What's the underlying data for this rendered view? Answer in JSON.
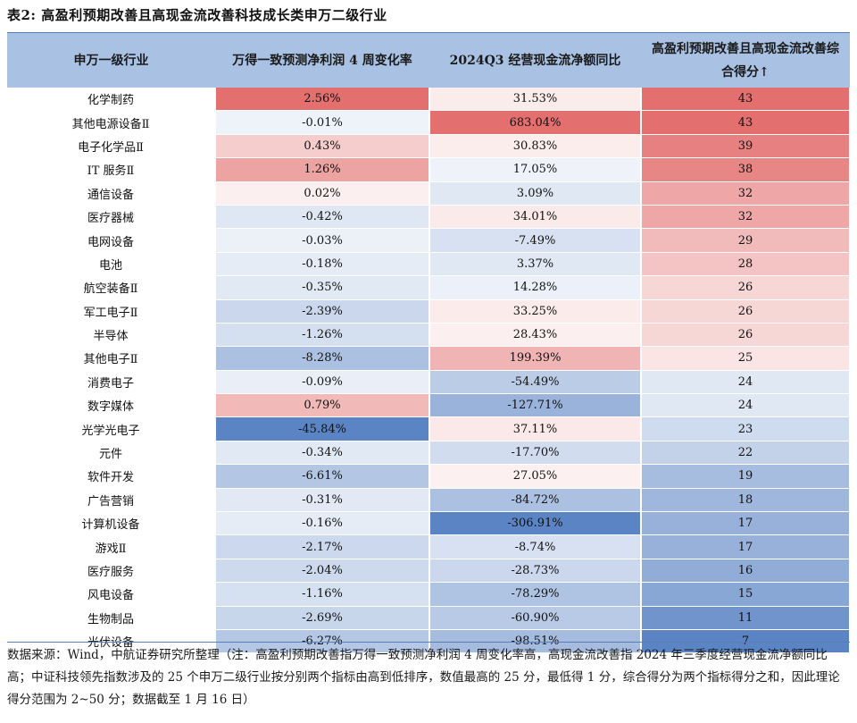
{
  "title": "表2: 高盈利预期改善且高现金流改善科技成长类申万二级行业",
  "headers": {
    "industry": "申万一级行业",
    "col1": "万得一致预测净利润 4 周变化率",
    "col2": "2024Q3 经营现金流净额同比",
    "col3": "高盈利预期改善且高现金流改善综合得分↑"
  },
  "colors": {
    "header_bg": "#a9c2e4",
    "red_strong": "#e46f6f",
    "blue_strong": "#5b84c4",
    "rule": "#5a7fb8"
  },
  "rows": [
    {
      "industry": "化学制药",
      "c1": "2.56%",
      "c2": "31.53%",
      "c3": "43"
    },
    {
      "industry": "其他电源设备Ⅱ",
      "c1": "-0.01%",
      "c2": "683.04%",
      "c3": "43"
    },
    {
      "industry": "电子化学品Ⅱ",
      "c1": "0.43%",
      "c2": "30.83%",
      "c3": "39"
    },
    {
      "industry": "IT 服务Ⅱ",
      "c1": "1.26%",
      "c2": "17.05%",
      "c3": "38"
    },
    {
      "industry": "通信设备",
      "c1": "0.02%",
      "c2": "3.09%",
      "c3": "32"
    },
    {
      "industry": "医疗器械",
      "c1": "-0.42%",
      "c2": "34.01%",
      "c3": "32"
    },
    {
      "industry": "电网设备",
      "c1": "-0.03%",
      "c2": "-7.49%",
      "c3": "29"
    },
    {
      "industry": "电池",
      "c1": "-0.18%",
      "c2": "3.37%",
      "c3": "28"
    },
    {
      "industry": "航空装备Ⅱ",
      "c1": "-0.35%",
      "c2": "14.28%",
      "c3": "26"
    },
    {
      "industry": "军工电子Ⅱ",
      "c1": "-2.39%",
      "c2": "33.25%",
      "c3": "26"
    },
    {
      "industry": "半导体",
      "c1": "-1.26%",
      "c2": "28.43%",
      "c3": "26"
    },
    {
      "industry": "其他电子Ⅱ",
      "c1": "-8.28%",
      "c2": "199.39%",
      "c3": "25"
    },
    {
      "industry": "消费电子",
      "c1": "-0.09%",
      "c2": "-54.49%",
      "c3": "24"
    },
    {
      "industry": "数字媒体",
      "c1": "0.79%",
      "c2": "-127.71%",
      "c3": "24"
    },
    {
      "industry": "光学光电子",
      "c1": "-45.84%",
      "c2": "37.11%",
      "c3": "23"
    },
    {
      "industry": "元件",
      "c1": "-0.34%",
      "c2": "-17.70%",
      "c3": "22"
    },
    {
      "industry": "软件开发",
      "c1": "-6.61%",
      "c2": "27.05%",
      "c3": "19"
    },
    {
      "industry": "广告营销",
      "c1": "-0.31%",
      "c2": "-84.72%",
      "c3": "18"
    },
    {
      "industry": "计算机设备",
      "c1": "-0.16%",
      "c2": "-306.91%",
      "c3": "17"
    },
    {
      "industry": "游戏Ⅱ",
      "c1": "-2.17%",
      "c2": "-8.74%",
      "c3": "17"
    },
    {
      "industry": "医疗服务",
      "c1": "-2.04%",
      "c2": "-28.73%",
      "c3": "16"
    },
    {
      "industry": "风电设备",
      "c1": "-1.16%",
      "c2": "-78.29%",
      "c3": "15"
    },
    {
      "industry": "生物制品",
      "c1": "-2.69%",
      "c2": "-60.90%",
      "c3": "11"
    },
    {
      "industry": "光伏设备",
      "c1": "-6.27%",
      "c2": "-98.51%",
      "c3": "7"
    }
  ],
  "footnote": "数据来源：Wind，中航证券研究所整理（注：高盈利预期改善指万得一致预测净利润 4 周变化率高，高现金流改善指 2024 年三季度经营现金流净额同比高；中证科技领先指数涉及的 25 个申万二级行业按分别两个指标由高到低排序，数值最高的 25 分，最低得 1 分，综合得分为两个指标得分之和，因此理论得分范围为 2~50 分；数据截至 1 月 16 日）"
}
